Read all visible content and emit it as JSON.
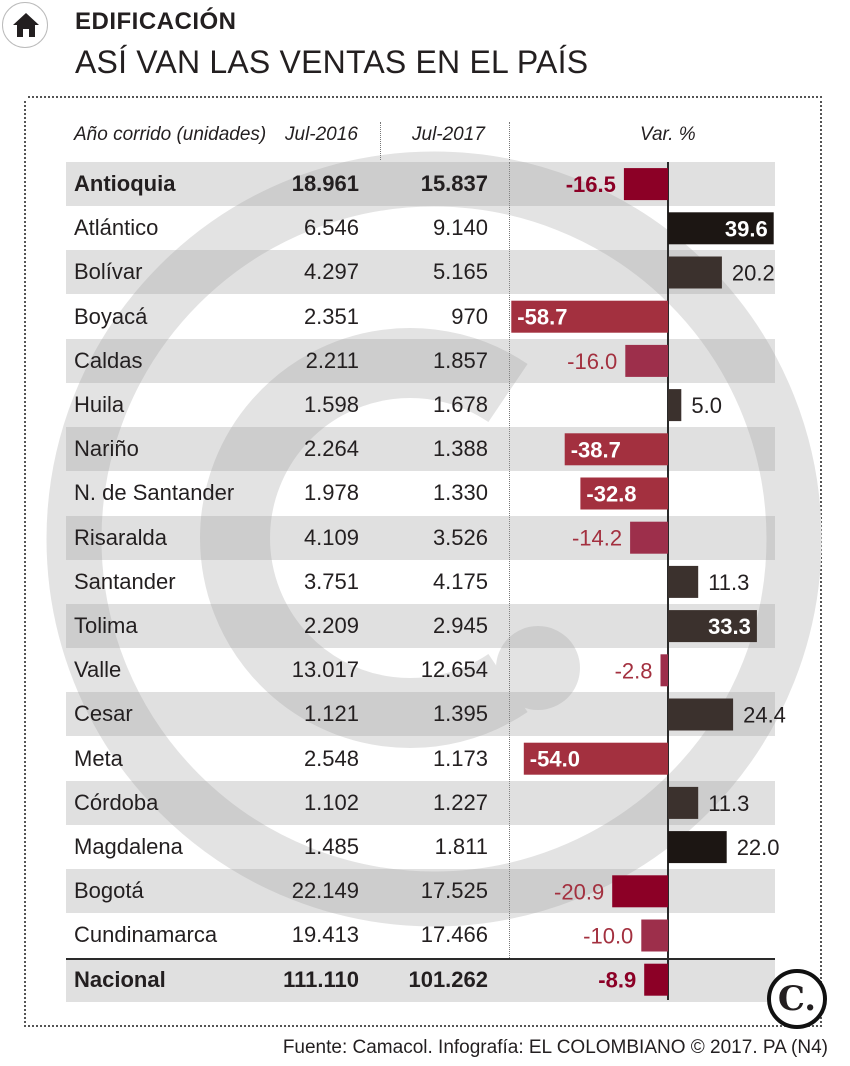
{
  "kicker": "EDIFICACIÓN",
  "title": "ASÍ VAN LAS VENTAS EN EL PAÍS",
  "headers": {
    "name": "Año corrido (unidades)",
    "col_a": "Jul-2016",
    "col_b": "Jul-2017",
    "var": "Var. %"
  },
  "source": "Fuente: Camacol. Infografía: EL COLOMBIANO © 2017. PA (N4)",
  "logo_letter": "C.",
  "colors": {
    "negative_strong": "#8c0026",
    "negative_medium": "#a3303f",
    "negative_light": "#9d2f4b",
    "positive_dark": "#1c1613",
    "positive_medium": "#3b312d"
  },
  "chart_data": {
    "type": "table",
    "columns": [
      "Año corrido (unidades)",
      "Jul-2016",
      "Jul-2017",
      "Var. %"
    ],
    "rows": [
      {
        "name": "Antioquia",
        "jul2016": "18.961",
        "jul2017": "15.837",
        "var": -16.5,
        "var_label": "-16.5",
        "bold": true
      },
      {
        "name": "Atlántico",
        "jul2016": "6.546",
        "jul2017": "9.140",
        "var": 39.6,
        "var_label": "39.6"
      },
      {
        "name": "Bolívar",
        "jul2016": "4.297",
        "jul2017": "5.165",
        "var": 20.2,
        "var_label": "20.2"
      },
      {
        "name": "Boyacá",
        "jul2016": "2.351",
        "jul2017": "970",
        "var": -58.7,
        "var_label": "-58.7"
      },
      {
        "name": "Caldas",
        "jul2016": "2.211",
        "jul2017": "1.857",
        "var": -16.0,
        "var_label": "-16.0"
      },
      {
        "name": "Huila",
        "jul2016": "1.598",
        "jul2017": "1.678",
        "var": 5.0,
        "var_label": "5.0"
      },
      {
        "name": "Nariño",
        "jul2016": "2.264",
        "jul2017": "1.388",
        "var": -38.7,
        "var_label": "-38.7"
      },
      {
        "name": "N. de Santander",
        "jul2016": "1.978",
        "jul2017": "1.330",
        "var": -32.8,
        "var_label": "-32.8"
      },
      {
        "name": "Risaralda",
        "jul2016": "4.109",
        "jul2017": "3.526",
        "var": -14.2,
        "var_label": "-14.2"
      },
      {
        "name": "Santander",
        "jul2016": "3.751",
        "jul2017": "4.175",
        "var": 11.3,
        "var_label": "11.3"
      },
      {
        "name": "Tolima",
        "jul2016": "2.209",
        "jul2017": "2.945",
        "var": 33.3,
        "var_label": "33.3"
      },
      {
        "name": "Valle",
        "jul2016": "13.017",
        "jul2017": "12.654",
        "var": -2.8,
        "var_label": "-2.8"
      },
      {
        "name": "Cesar",
        "jul2016": "1.121",
        "jul2017": "1.395",
        "var": 24.4,
        "var_label": "24.4"
      },
      {
        "name": "Meta",
        "jul2016": "2.548",
        "jul2017": "1.173",
        "var": -54.0,
        "var_label": "-54.0"
      },
      {
        "name": "Córdoba",
        "jul2016": "1.102",
        "jul2017": "1.227",
        "var": 11.3,
        "var_label": "11.3"
      },
      {
        "name": "Magdalena",
        "jul2016": "1.485",
        "jul2017": "1.811",
        "var": 22.0,
        "var_label": "22.0"
      },
      {
        "name": "Bogotá",
        "jul2016": "22.149",
        "jul2017": "17.525",
        "var": -20.9,
        "var_label": "-20.9"
      },
      {
        "name": "Cundinamarca",
        "jul2016": "19.413",
        "jul2017": "17.466",
        "var": -10.0,
        "var_label": "-10.0"
      },
      {
        "name": "Nacional",
        "jul2016": "111.110",
        "jul2017": "101.262",
        "var": -8.9,
        "var_label": "-8.9",
        "bold": true
      }
    ]
  }
}
